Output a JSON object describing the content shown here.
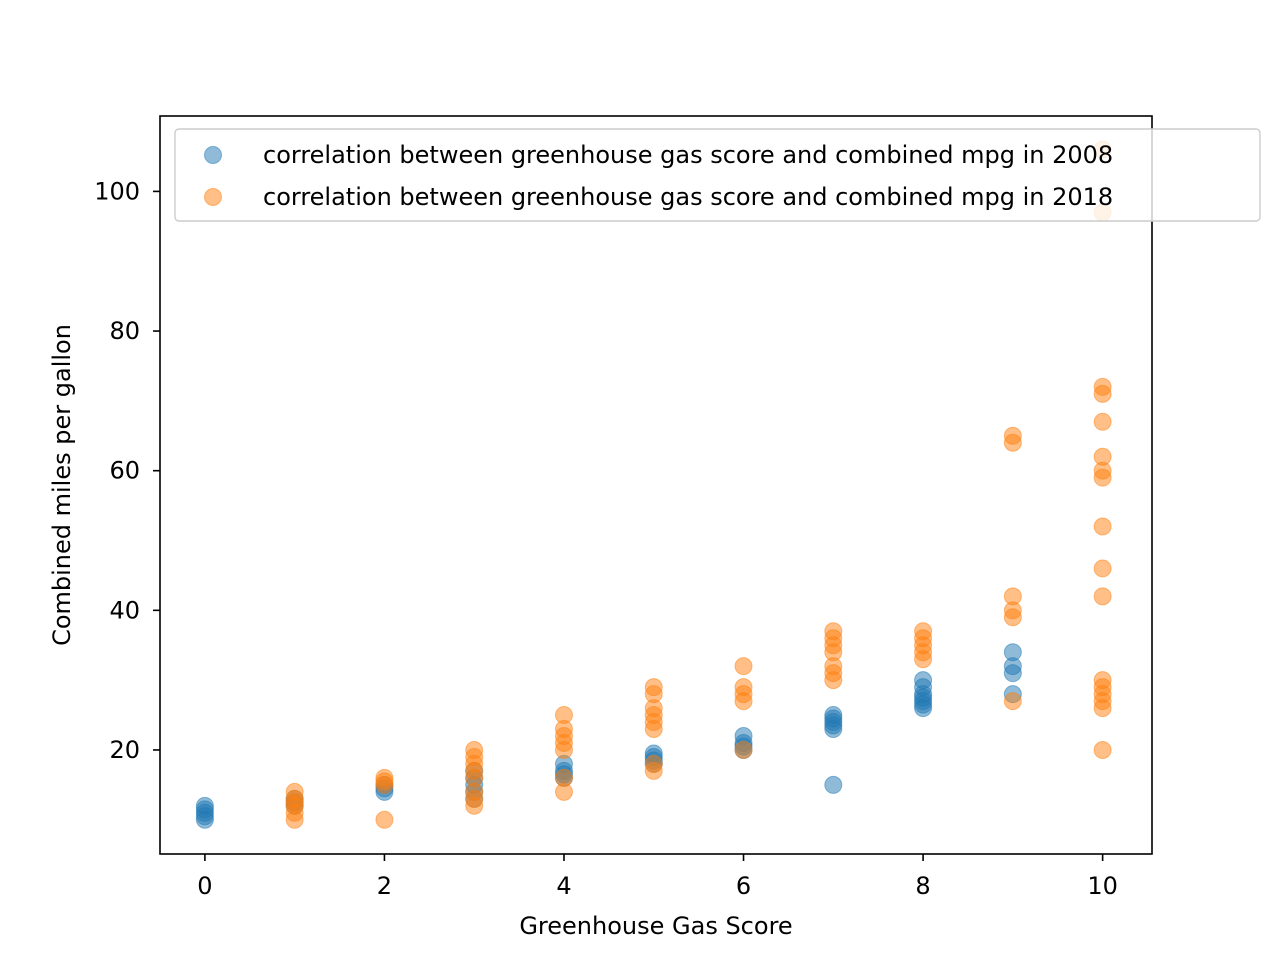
{
  "chart_data": {
    "type": "scatter",
    "title": "",
    "xlabel": "Greenhouse Gas Score",
    "ylabel": "Combined miles per gallon",
    "xlim": [
      -0.5,
      10.55
    ],
    "ylim": [
      5.1,
      110.8
    ],
    "xticks": [
      0,
      2,
      4,
      6,
      8,
      10
    ],
    "xtick_labels": [
      "0",
      "2",
      "4",
      "6",
      "8",
      "10"
    ],
    "yticks": [
      20,
      40,
      60,
      80,
      100
    ],
    "ytick_labels": [
      "20",
      "40",
      "60",
      "80",
      "100"
    ],
    "grid": false,
    "legend_position": "top-right",
    "series": [
      {
        "name": "correlation between greenhouse gas score and combined mpg in 2008",
        "color": "#1f77b4",
        "points": [
          [
            0,
            10
          ],
          [
            0,
            11
          ],
          [
            0,
            12
          ],
          [
            0,
            11.5
          ],
          [
            0,
            10.5
          ],
          [
            1,
            12
          ],
          [
            1,
            13
          ],
          [
            1,
            12.5
          ],
          [
            2,
            14
          ],
          [
            2,
            15
          ],
          [
            2,
            14.5
          ],
          [
            3,
            13
          ],
          [
            3,
            14
          ],
          [
            3,
            15
          ],
          [
            3,
            16
          ],
          [
            3,
            17
          ],
          [
            4,
            16
          ],
          [
            4,
            17
          ],
          [
            4,
            18
          ],
          [
            4,
            16.5
          ],
          [
            5,
            18
          ],
          [
            5,
            19
          ],
          [
            5,
            19.5
          ],
          [
            5,
            18.5
          ],
          [
            6,
            20
          ],
          [
            6,
            21
          ],
          [
            6,
            22
          ],
          [
            6,
            20.5
          ],
          [
            7,
            15
          ],
          [
            7,
            23
          ],
          [
            7,
            24
          ],
          [
            7,
            25
          ],
          [
            7,
            23.5
          ],
          [
            7,
            24.5
          ],
          [
            8,
            26
          ],
          [
            8,
            27
          ],
          [
            8,
            28
          ],
          [
            8,
            29
          ],
          [
            8,
            30
          ],
          [
            8,
            26.5
          ],
          [
            8,
            27.5
          ],
          [
            9,
            28
          ],
          [
            9,
            31
          ],
          [
            9,
            32
          ],
          [
            9,
            34
          ]
        ]
      },
      {
        "name": "correlation between greenhouse gas score and combined mpg in 2018",
        "color": "#ff7f0e",
        "points": [
          [
            1,
            10
          ],
          [
            1,
            11
          ],
          [
            1,
            12
          ],
          [
            1,
            13
          ],
          [
            1,
            14
          ],
          [
            1,
            12.5
          ],
          [
            2,
            10
          ],
          [
            2,
            15
          ],
          [
            2,
            16
          ],
          [
            2,
            15.5
          ],
          [
            3,
            12
          ],
          [
            3,
            13
          ],
          [
            3,
            14
          ],
          [
            3,
            16
          ],
          [
            3,
            17
          ],
          [
            3,
            18
          ],
          [
            3,
            19
          ],
          [
            3,
            20
          ],
          [
            4,
            14
          ],
          [
            4,
            16
          ],
          [
            4,
            20
          ],
          [
            4,
            21
          ],
          [
            4,
            22
          ],
          [
            4,
            23
          ],
          [
            4,
            25
          ],
          [
            5,
            17
          ],
          [
            5,
            18
          ],
          [
            5,
            23
          ],
          [
            5,
            24
          ],
          [
            5,
            25
          ],
          [
            5,
            26
          ],
          [
            5,
            28
          ],
          [
            5,
            29
          ],
          [
            6,
            20
          ],
          [
            6,
            27
          ],
          [
            6,
            28
          ],
          [
            6,
            29
          ],
          [
            6,
            32
          ],
          [
            7,
            30
          ],
          [
            7,
            31
          ],
          [
            7,
            32
          ],
          [
            7,
            34
          ],
          [
            7,
            35
          ],
          [
            7,
            36
          ],
          [
            7,
            37
          ],
          [
            8,
            33
          ],
          [
            8,
            34
          ],
          [
            8,
            35
          ],
          [
            8,
            36
          ],
          [
            8,
            37
          ],
          [
            9,
            27
          ],
          [
            9,
            39
          ],
          [
            9,
            40
          ],
          [
            9,
            42
          ],
          [
            9,
            64
          ],
          [
            9,
            65
          ],
          [
            10,
            20
          ],
          [
            10,
            26
          ],
          [
            10,
            27
          ],
          [
            10,
            28
          ],
          [
            10,
            29
          ],
          [
            10,
            30
          ],
          [
            10,
            42
          ],
          [
            10,
            46
          ],
          [
            10,
            52
          ],
          [
            10,
            59
          ],
          [
            10,
            60
          ],
          [
            10,
            62
          ],
          [
            10,
            67
          ],
          [
            10,
            71
          ],
          [
            10,
            72
          ],
          [
            10,
            97
          ],
          [
            10,
            106
          ]
        ]
      }
    ]
  }
}
